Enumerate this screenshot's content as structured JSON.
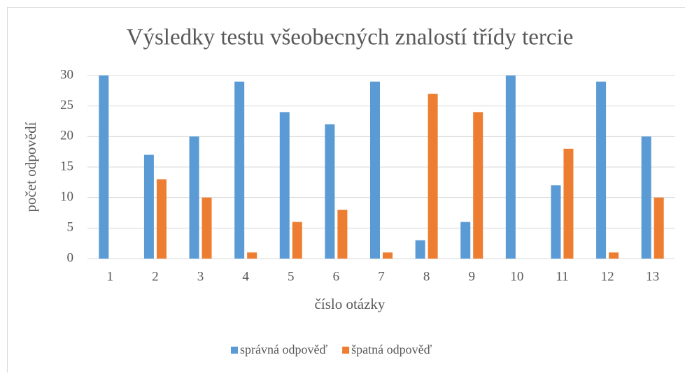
{
  "chart_data": {
    "type": "bar",
    "title": "Výsledky testu všeobecných znalostí třídy tercie",
    "x_label": "číslo otázky",
    "y_label": "počet odpovědí",
    "categories": [
      "1",
      "2",
      "3",
      "4",
      "5",
      "6",
      "7",
      "8",
      "9",
      "10",
      "11",
      "12",
      "13"
    ],
    "series": [
      {
        "name": "správná odpověď",
        "color": "#5b9bd5",
        "values": [
          30,
          17,
          20,
          29,
          24,
          22,
          29,
          3,
          6,
          30,
          12,
          29,
          20
        ]
      },
      {
        "name": "špatná odpověď",
        "color": "#ed7d31",
        "values": [
          0,
          13,
          10,
          1,
          6,
          8,
          1,
          27,
          24,
          0,
          18,
          1,
          10
        ]
      }
    ],
    "ylim": [
      0,
      30
    ],
    "yticks": [
      0,
      5,
      10,
      15,
      20,
      25,
      30
    ],
    "grid": true,
    "legend": "bottom"
  }
}
